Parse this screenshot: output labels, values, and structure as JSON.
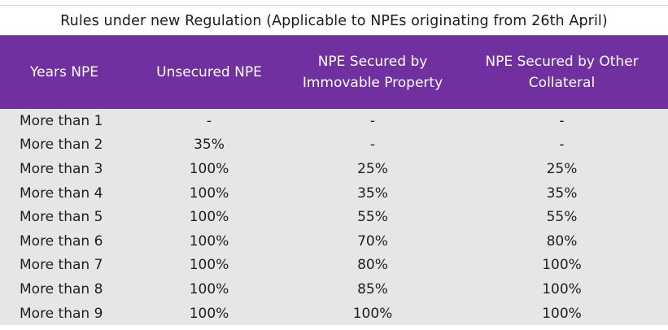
{
  "title": "Rules under new Regulation (Applicable to NPEs originating from 26th April)",
  "columns": [
    "Years NPE",
    "Unsecured NPE",
    "NPE Secured by Immovable Property",
    "NPE Secured by Other Collateral"
  ],
  "rows": [
    [
      "More than 1",
      "-",
      "-",
      "-"
    ],
    [
      "More than 2",
      "35%",
      "-",
      "-"
    ],
    [
      "More than 3",
      "100%",
      "25%",
      "25%"
    ],
    [
      "More than 4",
      "100%",
      "35%",
      "35%"
    ],
    [
      "More than 5",
      "100%",
      "55%",
      "55%"
    ],
    [
      "More than 6",
      "100%",
      "70%",
      "80%"
    ],
    [
      "More than 7",
      "100%",
      "80%",
      "100%"
    ],
    [
      "More than 8",
      "100%",
      "85%",
      "100%"
    ],
    [
      "More than 9",
      "100%",
      "100%",
      "100%"
    ]
  ],
  "colors": {
    "header_bg": "#7030a0",
    "header_text": "#ffffff",
    "body_bg": "#e7e6e6"
  }
}
